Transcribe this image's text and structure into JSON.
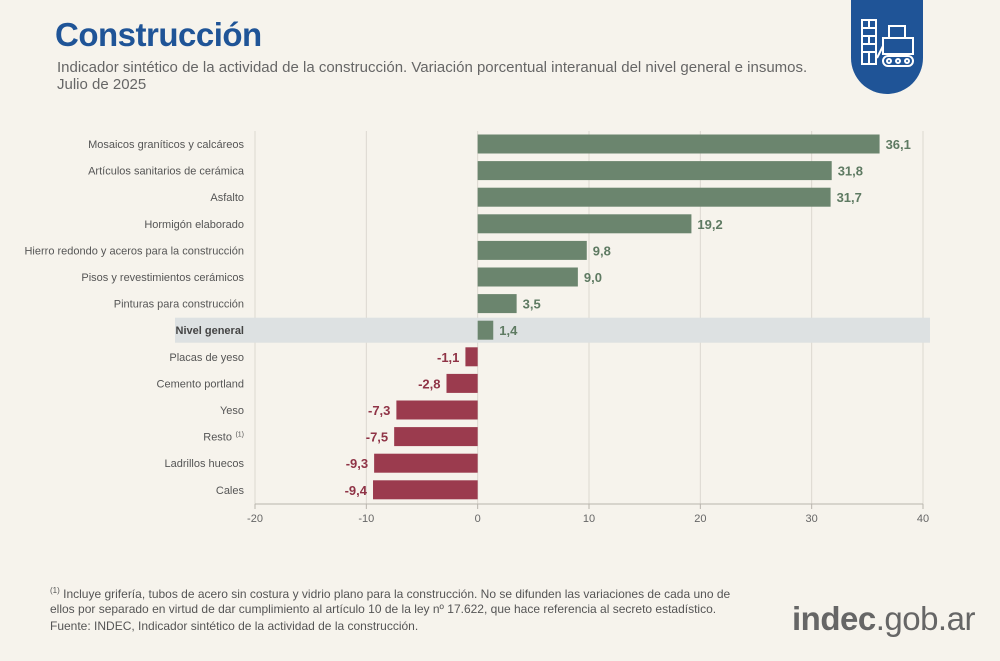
{
  "header": {
    "title": "Construcción",
    "subtitle_line1": "Indicador sintético de la actividad de la construcción. Variación porcentual interanual del nivel general e insumos.",
    "subtitle_line2": "Julio de 2025"
  },
  "colors": {
    "positive": "#6b856e",
    "negative": "#9b3b4e",
    "positive_label": "#5e7a62",
    "negative_label": "#8f3346",
    "highlight_band": "#dde1e2",
    "brand_blue": "#1f5497"
  },
  "chart_data": {
    "type": "bar",
    "orientation": "horizontal",
    "categories": [
      "Mosaicos graníticos y calcáreos",
      "Artículos sanitarios de cerámica",
      "Asfalto",
      "Hormigón elaborado",
      "Hierro redondo y aceros para la construcción",
      "Pisos y revestimientos cerámicos",
      "Pinturas para construcción",
      "Nivel general",
      "Placas de yeso",
      "Cemento portland",
      "Yeso",
      "Resto",
      "Ladrillos huecos",
      "Cales"
    ],
    "values": [
      36.1,
      31.8,
      31.7,
      19.2,
      9.8,
      9.0,
      3.5,
      1.4,
      -1.1,
      -2.8,
      -7.3,
      -7.5,
      -9.3,
      -9.4
    ],
    "value_labels": [
      "36,1",
      "31,8",
      "31,7",
      "19,2",
      "9,8",
      "9,0",
      "3,5",
      "1,4",
      "-1,1",
      "-2,8",
      "-7,3",
      "-7,5",
      "-9,3",
      "-9,4"
    ],
    "highlight_category": "Nivel general",
    "footnote_marker": {
      "category": "Resto",
      "marker": "(1)"
    },
    "xlim": [
      -20,
      40
    ],
    "xticks": [
      -20,
      -10,
      0,
      10,
      20,
      30,
      40
    ],
    "title": "",
    "xlabel": "",
    "ylabel": "",
    "grid": true
  },
  "footer": {
    "footnote_marker": "(1)",
    "footnote_text": " Incluye grifería, tubos de acero sin costura y vidrio plano para la construcción. No se difunden las variaciones de cada uno de ellos por separado en virtud de dar cumplimiento al artículo 10 de la ley  nº 17.622, que hace referencia al secreto estadístico.",
    "source": "Fuente: INDEC, Indicador sintético de la actividad de la construcción."
  },
  "logo": {
    "brand": "indec",
    "domain": ".gob.ar"
  },
  "icon": "construction-icon"
}
